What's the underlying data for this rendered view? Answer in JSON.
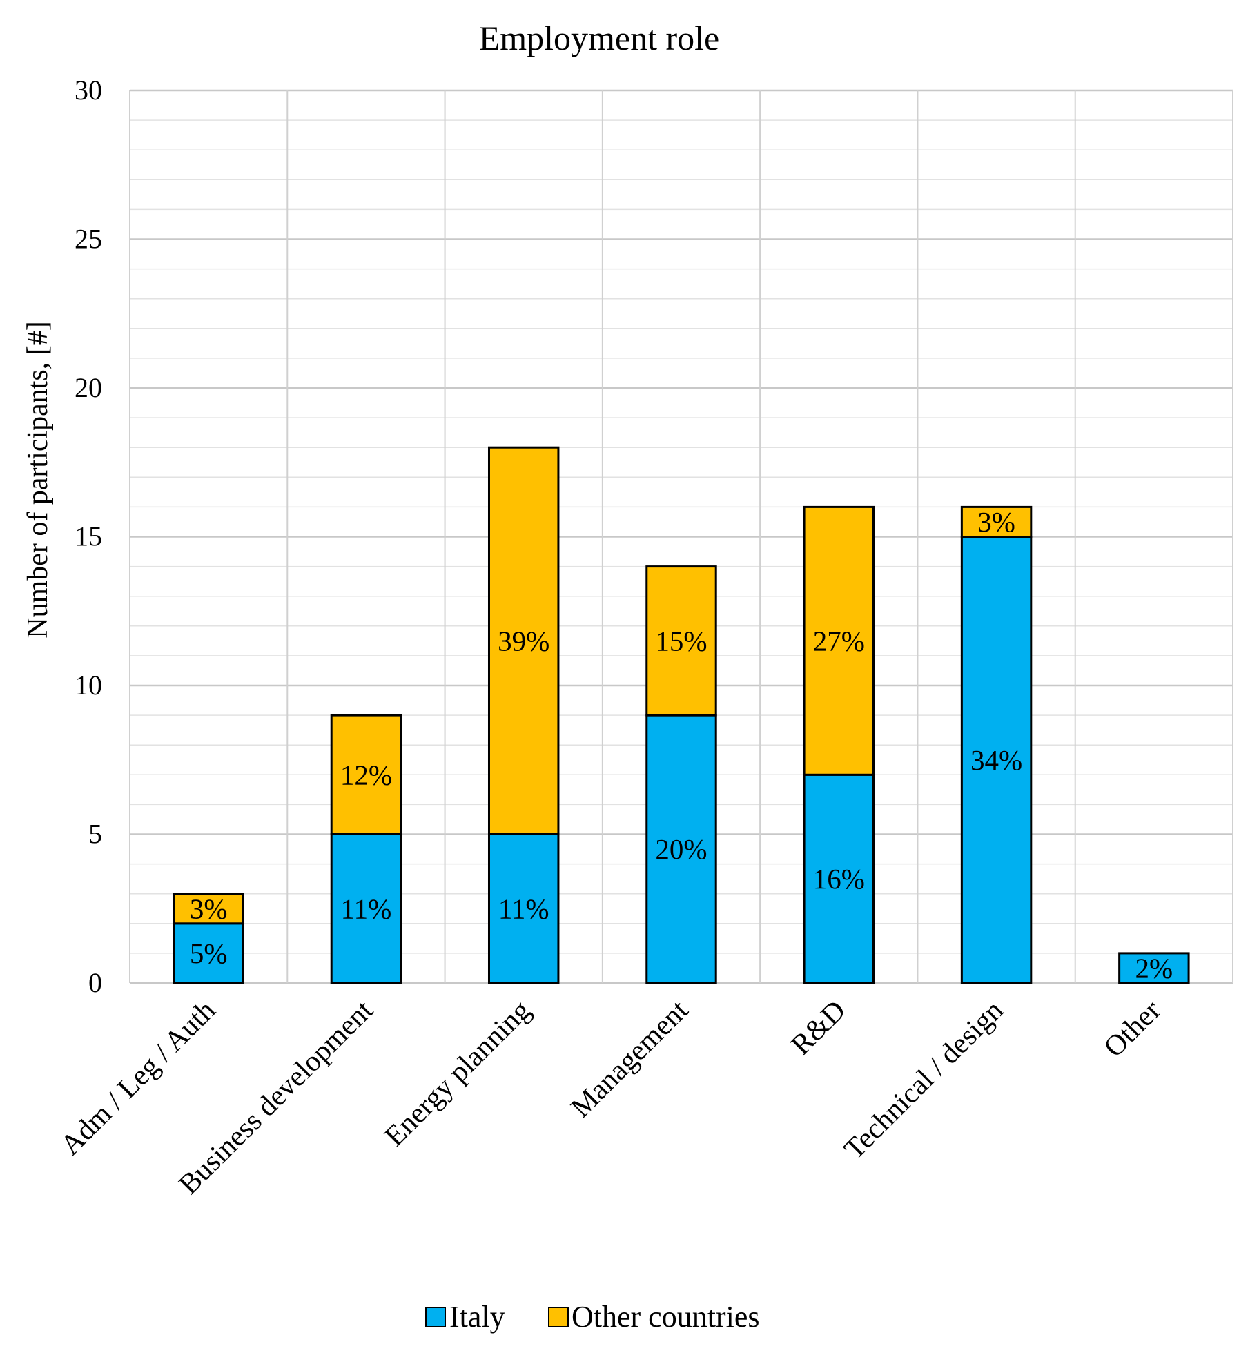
{
  "chart_data": {
    "type": "bar",
    "stacked": true,
    "title": "Employment role",
    "xlabel": "",
    "ylabel": "Number of participants, [#]",
    "ylim": [
      0,
      30
    ],
    "y_ticks": [
      "0",
      "5",
      "10",
      "15",
      "20",
      "25",
      "30"
    ],
    "y_minor_step": 1,
    "grid": true,
    "legend_position": "bottom",
    "categories": [
      "Adm / Leg / Auth",
      "Business development",
      "Energy planning",
      "Management",
      "R&D",
      "Technical / design",
      "Other"
    ],
    "series": [
      {
        "name": "Italy",
        "color": "#00B0F0",
        "values": [
          2,
          5,
          5,
          9,
          7,
          15,
          1
        ],
        "labels": [
          "5%",
          "11%",
          "11%",
          "20%",
          "16%",
          "34%",
          "2%"
        ]
      },
      {
        "name": "Other countries",
        "color": "#FFC000",
        "values": [
          1,
          4,
          13,
          5,
          9,
          1,
          0
        ],
        "labels": [
          "3%",
          "12%",
          "39%",
          "15%",
          "27%",
          "3%",
          ""
        ]
      }
    ]
  }
}
